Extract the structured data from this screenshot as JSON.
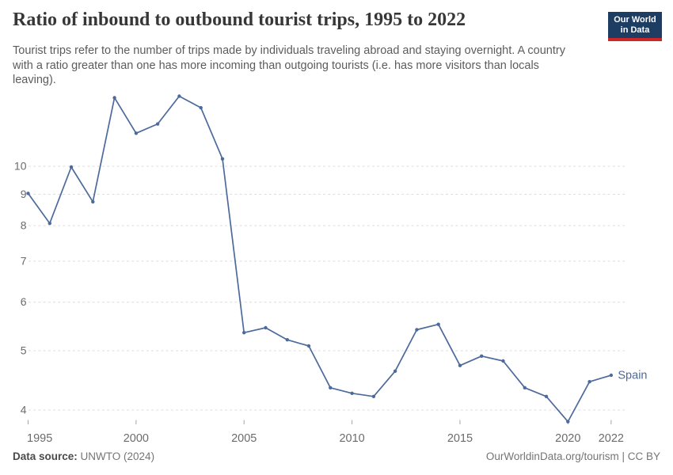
{
  "header": {
    "title": "Ratio of inbound to outbound tourist trips, 1995 to 2022",
    "subtitle_lines": [
      "Tourist trips refer to the number of trips made by individuals traveling abroad and staying overnight. A country",
      "with a ratio greater than one has more incoming than outgoing tourists (i.e. has more visitors than locals",
      "leaving)."
    ]
  },
  "logo": {
    "line1": "Our World",
    "line2": "in Data"
  },
  "colors": {
    "line": "#4c6a9c",
    "grid": "#dcdcdc",
    "axis_text": "#6b6b6b",
    "tick": "#a6a6a6",
    "logo_bg": "#1d3d63",
    "logo_bar": "#cb2727"
  },
  "chart_data": {
    "type": "line",
    "title": "Ratio of inbound to outbound tourist trips, 1995 to 2022",
    "xlabel": "",
    "ylabel": "",
    "y_scale": "log",
    "grid": true,
    "legend_position": "end-of-line",
    "ylim": [
      3.8,
      13.3
    ],
    "xlim": [
      1995,
      2022
    ],
    "x_ticks": [
      1995,
      2000,
      2005,
      2010,
      2015,
      2020,
      2022
    ],
    "y_ticks": [
      4,
      5,
      6,
      7,
      8,
      9,
      10
    ],
    "series": [
      {
        "name": "Spain",
        "color": "#4c6a9c",
        "x": [
          1995,
          1996,
          1997,
          1998,
          1999,
          2000,
          2001,
          2002,
          2003,
          2004,
          2005,
          2006,
          2007,
          2008,
          2009,
          2010,
          2011,
          2012,
          2013,
          2014,
          2015,
          2016,
          2017,
          2018,
          2019,
          2020,
          2021,
          2022
        ],
        "values": [
          9.03,
          8.07,
          9.97,
          8.75,
          12.94,
          11.32,
          11.72,
          13.01,
          12.46,
          10.28,
          5.35,
          5.45,
          5.21,
          5.09,
          4.35,
          4.26,
          4.21,
          4.63,
          5.41,
          5.52,
          4.73,
          4.9,
          4.81,
          4.35,
          4.21,
          3.83,
          4.45,
          4.56
        ]
      }
    ]
  },
  "footer": {
    "source_label": "Data source:",
    "source_value": "UNWTO (2024)",
    "rights": "OurWorldinData.org/tourism | CC BY"
  }
}
